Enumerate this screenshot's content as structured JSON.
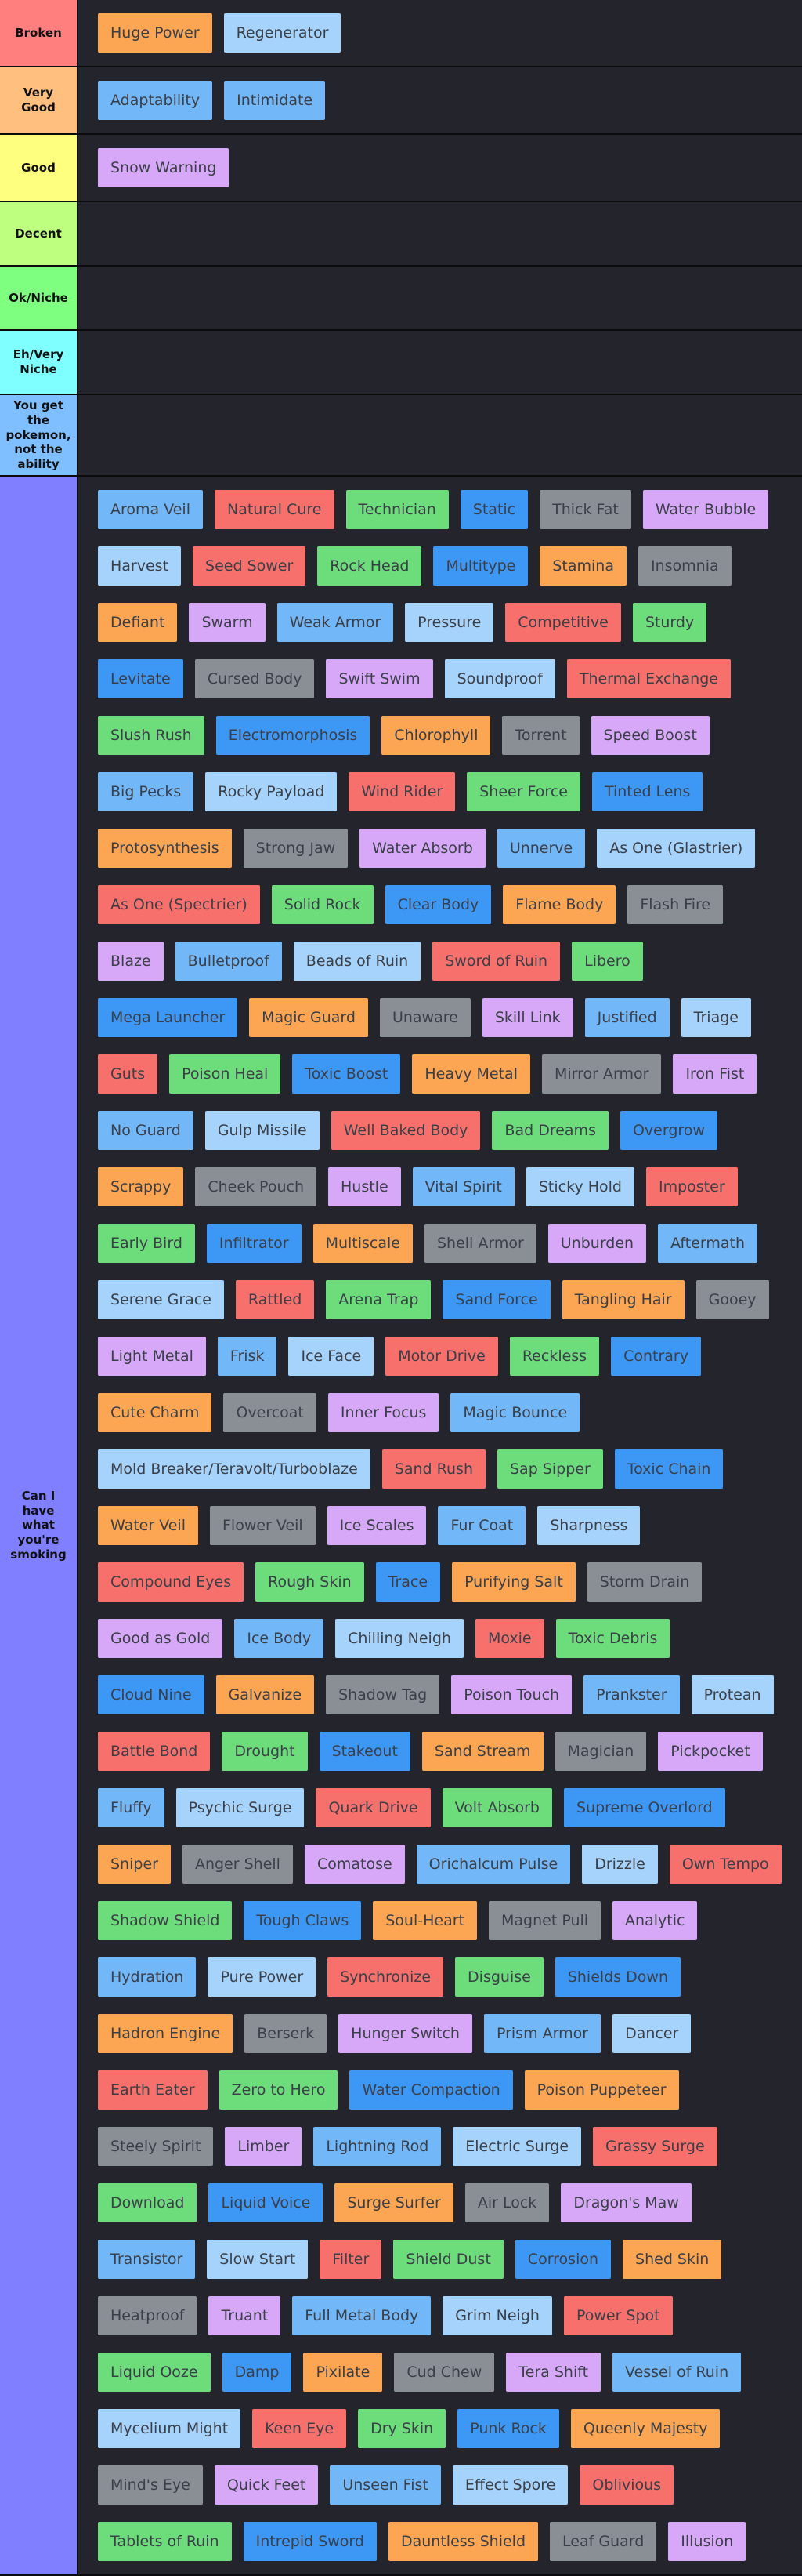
{
  "tiers": [
    {
      "label": "Broken",
      "color": "#ff7f7f",
      "items": [
        {
          "name": "Huge Power",
          "color": "#fca552"
        },
        {
          "name": "Regenerator",
          "color": "#a6d3fb"
        }
      ]
    },
    {
      "label": "Very Good",
      "color": "#ffbf7f",
      "items": [
        {
          "name": "Adaptability",
          "color": "#72b7f7"
        },
        {
          "name": "Intimidate",
          "color": "#72b7f7"
        }
      ]
    },
    {
      "label": "Good",
      "color": "#ffff7f",
      "items": [
        {
          "name": "Snow Warning",
          "color": "#d7a8f8"
        }
      ]
    },
    {
      "label": "Decent",
      "color": "#bfff7f",
      "items": []
    },
    {
      "label": "Ok/Niche",
      "color": "#7fff7f",
      "items": []
    },
    {
      "label": "Eh/Very Niche",
      "color": "#7fffff",
      "items": []
    },
    {
      "label": "You get the pokemon, not the ability",
      "color": "#7fbfff",
      "items": []
    },
    {
      "label": "Can I have what you're smoking",
      "color": "#7f7fff",
      "items": [
        {
          "name": "Aroma Veil",
          "color": "#72b7f7"
        },
        {
          "name": "Natural Cure",
          "color": "#f7706b"
        },
        {
          "name": "Technician",
          "color": "#6ddc7b"
        },
        {
          "name": "Static",
          "color": "#3d97f5"
        },
        {
          "name": "Thick Fat",
          "color": "#8a8f96"
        },
        {
          "name": "Water Bubble",
          "color": "#d7a8f8"
        },
        {
          "name": "Harvest",
          "color": "#a6d3fb"
        },
        {
          "name": "Seed Sower",
          "color": "#f7706b"
        },
        {
          "name": "Rock Head",
          "color": "#6ddc7b"
        },
        {
          "name": "Multitype",
          "color": "#3d97f5"
        },
        {
          "name": "Stamina",
          "color": "#fca552"
        },
        {
          "name": "Insomnia",
          "color": "#8a8f96"
        },
        {
          "name": "Defiant",
          "color": "#fca552"
        },
        {
          "name": "Swarm",
          "color": "#d7a8f8"
        },
        {
          "name": "Weak Armor",
          "color": "#72b7f7"
        },
        {
          "name": "Pressure",
          "color": "#a6d3fb"
        },
        {
          "name": "Competitive",
          "color": "#f7706b"
        },
        {
          "name": "Sturdy",
          "color": "#6ddc7b"
        },
        {
          "name": "Levitate",
          "color": "#3d97f5"
        },
        {
          "name": "Cursed Body",
          "color": "#8a8f96"
        },
        {
          "name": "Swift Swim",
          "color": "#d7a8f8"
        },
        {
          "name": "Soundproof",
          "color": "#a6d3fb"
        },
        {
          "name": "Thermal Exchange",
          "color": "#f7706b"
        },
        {
          "name": "Slush Rush",
          "color": "#6ddc7b"
        },
        {
          "name": "Electromorphosis",
          "color": "#3d97f5"
        },
        {
          "name": "Chlorophyll",
          "color": "#fca552"
        },
        {
          "name": "Torrent",
          "color": "#8a8f96"
        },
        {
          "name": "Speed Boost",
          "color": "#d7a8f8"
        },
        {
          "name": "Big Pecks",
          "color": "#72b7f7"
        },
        {
          "name": "Rocky Payload",
          "color": "#a6d3fb"
        },
        {
          "name": "Wind Rider",
          "color": "#f7706b"
        },
        {
          "name": "Sheer Force",
          "color": "#6ddc7b"
        },
        {
          "name": "Tinted Lens",
          "color": "#3d97f5"
        },
        {
          "name": "Protosynthesis",
          "color": "#fca552"
        },
        {
          "name": "Strong Jaw",
          "color": "#8a8f96"
        },
        {
          "name": "Water Absorb",
          "color": "#d7a8f8"
        },
        {
          "name": "Unnerve",
          "color": "#72b7f7"
        },
        {
          "name": "As One (Glastrier)",
          "color": "#a6d3fb"
        },
        {
          "name": "As One (Spectrier)",
          "color": "#f7706b"
        },
        {
          "name": "Solid Rock",
          "color": "#6ddc7b"
        },
        {
          "name": "Clear Body",
          "color": "#3d97f5"
        },
        {
          "name": "Flame Body",
          "color": "#fca552"
        },
        {
          "name": "Flash Fire",
          "color": "#8a8f96"
        },
        {
          "name": "Blaze",
          "color": "#d7a8f8"
        },
        {
          "name": "Bulletproof",
          "color": "#72b7f7"
        },
        {
          "name": "Beads of Ruin",
          "color": "#a6d3fb"
        },
        {
          "name": "Sword of Ruin",
          "color": "#f7706b"
        },
        {
          "name": "Libero",
          "color": "#6ddc7b"
        },
        {
          "name": "Mega Launcher",
          "color": "#3d97f5"
        },
        {
          "name": "Magic Guard",
          "color": "#fca552"
        },
        {
          "name": "Unaware",
          "color": "#8a8f96"
        },
        {
          "name": "Skill Link",
          "color": "#d7a8f8"
        },
        {
          "name": "Justified",
          "color": "#72b7f7"
        },
        {
          "name": "Triage",
          "color": "#a6d3fb"
        },
        {
          "name": "Guts",
          "color": "#f7706b"
        },
        {
          "name": "Poison Heal",
          "color": "#6ddc7b"
        },
        {
          "name": "Toxic Boost",
          "color": "#3d97f5"
        },
        {
          "name": "Heavy Metal",
          "color": "#fca552"
        },
        {
          "name": "Mirror Armor",
          "color": "#8a8f96"
        },
        {
          "name": "Iron Fist",
          "color": "#d7a8f8"
        },
        {
          "name": "No Guard",
          "color": "#72b7f7"
        },
        {
          "name": "Gulp Missile",
          "color": "#a6d3fb"
        },
        {
          "name": "Well Baked Body",
          "color": "#f7706b"
        },
        {
          "name": "Bad Dreams",
          "color": "#6ddc7b"
        },
        {
          "name": "Overgrow",
          "color": "#3d97f5"
        },
        {
          "name": "Scrappy",
          "color": "#fca552"
        },
        {
          "name": "Cheek Pouch",
          "color": "#8a8f96"
        },
        {
          "name": "Hustle",
          "color": "#d7a8f8"
        },
        {
          "name": "Vital Spirit",
          "color": "#72b7f7"
        },
        {
          "name": "Sticky Hold",
          "color": "#a6d3fb"
        },
        {
          "name": "Imposter",
          "color": "#f7706b"
        },
        {
          "name": "Early Bird",
          "color": "#6ddc7b"
        },
        {
          "name": "Infiltrator",
          "color": "#3d97f5"
        },
        {
          "name": "Multiscale",
          "color": "#fca552"
        },
        {
          "name": "Shell Armor",
          "color": "#8a8f96"
        },
        {
          "name": "Unburden",
          "color": "#d7a8f8"
        },
        {
          "name": "Aftermath",
          "color": "#72b7f7"
        },
        {
          "name": "Serene Grace",
          "color": "#a6d3fb"
        },
        {
          "name": "Rattled",
          "color": "#f7706b"
        },
        {
          "name": "Arena Trap",
          "color": "#6ddc7b"
        },
        {
          "name": "Sand Force",
          "color": "#3d97f5"
        },
        {
          "name": "Tangling Hair",
          "color": "#fca552"
        },
        {
          "name": "Gooey",
          "color": "#8a8f96"
        },
        {
          "name": "Light Metal",
          "color": "#d7a8f8"
        },
        {
          "name": "Frisk",
          "color": "#72b7f7"
        },
        {
          "name": "Ice Face",
          "color": "#a6d3fb"
        },
        {
          "name": "Motor Drive",
          "color": "#f7706b"
        },
        {
          "name": "Reckless",
          "color": "#6ddc7b"
        },
        {
          "name": "Contrary",
          "color": "#3d97f5"
        },
        {
          "name": "Cute Charm",
          "color": "#fca552"
        },
        {
          "name": "Overcoat",
          "color": "#8a8f96"
        },
        {
          "name": "Inner Focus",
          "color": "#d7a8f8"
        },
        {
          "name": "Magic Bounce",
          "color": "#72b7f7"
        },
        {
          "name": "Mold Breaker/Teravolt/Turboblaze",
          "color": "#a6d3fb"
        },
        {
          "name": "Sand Rush",
          "color": "#f7706b"
        },
        {
          "name": "Sap Sipper",
          "color": "#6ddc7b"
        },
        {
          "name": "Toxic Chain",
          "color": "#3d97f5"
        },
        {
          "name": "Water Veil",
          "color": "#fca552"
        },
        {
          "name": "Flower Veil",
          "color": "#8a8f96"
        },
        {
          "name": "Ice Scales",
          "color": "#d7a8f8"
        },
        {
          "name": "Fur Coat",
          "color": "#72b7f7"
        },
        {
          "name": "Sharpness",
          "color": "#a6d3fb"
        },
        {
          "name": "Compound Eyes",
          "color": "#f7706b"
        },
        {
          "name": "Rough Skin",
          "color": "#6ddc7b"
        },
        {
          "name": "Trace",
          "color": "#3d97f5"
        },
        {
          "name": "Purifying Salt",
          "color": "#fca552"
        },
        {
          "name": "Storm Drain",
          "color": "#8a8f96"
        },
        {
          "name": "Good as Gold",
          "color": "#d7a8f8"
        },
        {
          "name": "Ice Body",
          "color": "#72b7f7"
        },
        {
          "name": "Chilling Neigh",
          "color": "#a6d3fb"
        },
        {
          "name": "Moxie",
          "color": "#f7706b"
        },
        {
          "name": "Toxic Debris",
          "color": "#6ddc7b"
        },
        {
          "name": "Cloud Nine",
          "color": "#3d97f5"
        },
        {
          "name": "Galvanize",
          "color": "#fca552"
        },
        {
          "name": "Shadow Tag",
          "color": "#8a8f96"
        },
        {
          "name": "Poison Touch",
          "color": "#d7a8f8"
        },
        {
          "name": "Prankster",
          "color": "#72b7f7"
        },
        {
          "name": "Protean",
          "color": "#a6d3fb"
        },
        {
          "name": "Battle Bond",
          "color": "#f7706b"
        },
        {
          "name": "Drought",
          "color": "#6ddc7b"
        },
        {
          "name": "Stakeout",
          "color": "#3d97f5"
        },
        {
          "name": "Sand Stream",
          "color": "#fca552"
        },
        {
          "name": "Magician",
          "color": "#8a8f96"
        },
        {
          "name": "Pickpocket",
          "color": "#d7a8f8"
        },
        {
          "name": "Fluffy",
          "color": "#72b7f7"
        },
        {
          "name": "Psychic Surge",
          "color": "#a6d3fb"
        },
        {
          "name": "Quark Drive",
          "color": "#f7706b"
        },
        {
          "name": "Volt Absorb",
          "color": "#6ddc7b"
        },
        {
          "name": "Supreme Overlord",
          "color": "#3d97f5"
        },
        {
          "name": "Sniper",
          "color": "#fca552"
        },
        {
          "name": "Anger Shell",
          "color": "#8a8f96"
        },
        {
          "name": "Comatose",
          "color": "#d7a8f8"
        },
        {
          "name": "Orichalcum Pulse",
          "color": "#72b7f7"
        },
        {
          "name": "Drizzle",
          "color": "#a6d3fb"
        },
        {
          "name": "Own Tempo",
          "color": "#f7706b"
        },
        {
          "name": "Shadow Shield",
          "color": "#6ddc7b"
        },
        {
          "name": "Tough Claws",
          "color": "#3d97f5"
        },
        {
          "name": "Soul-Heart",
          "color": "#fca552"
        },
        {
          "name": "Magnet Pull",
          "color": "#8a8f96"
        },
        {
          "name": "Analytic",
          "color": "#d7a8f8"
        },
        {
          "name": "Hydration",
          "color": "#72b7f7"
        },
        {
          "name": "Pure Power",
          "color": "#a6d3fb"
        },
        {
          "name": "Synchronize",
          "color": "#f7706b"
        },
        {
          "name": "Disguise",
          "color": "#6ddc7b"
        },
        {
          "name": "Shields Down",
          "color": "#3d97f5"
        },
        {
          "name": "Hadron Engine",
          "color": "#fca552"
        },
        {
          "name": "Berserk",
          "color": "#8a8f96"
        },
        {
          "name": "Hunger Switch",
          "color": "#d7a8f8"
        },
        {
          "name": "Prism Armor",
          "color": "#72b7f7"
        },
        {
          "name": "Dancer",
          "color": "#a6d3fb"
        },
        {
          "name": "Earth Eater",
          "color": "#f7706b"
        },
        {
          "name": "Zero to Hero",
          "color": "#6ddc7b"
        },
        {
          "name": "Water Compaction",
          "color": "#3d97f5"
        },
        {
          "name": "Poison Puppeteer",
          "color": "#fca552"
        },
        {
          "name": "Steely Spirit",
          "color": "#8a8f96"
        },
        {
          "name": "Limber",
          "color": "#d7a8f8"
        },
        {
          "name": "Lightning Rod",
          "color": "#72b7f7"
        },
        {
          "name": "Electric Surge",
          "color": "#a6d3fb"
        },
        {
          "name": "Grassy Surge",
          "color": "#f7706b"
        },
        {
          "name": "Download",
          "color": "#6ddc7b"
        },
        {
          "name": "Liquid Voice",
          "color": "#3d97f5"
        },
        {
          "name": "Surge Surfer",
          "color": "#fca552"
        },
        {
          "name": "Air Lock",
          "color": "#8a8f96"
        },
        {
          "name": "Dragon's Maw",
          "color": "#d7a8f8"
        },
        {
          "name": "Transistor",
          "color": "#72b7f7"
        },
        {
          "name": "Slow Start",
          "color": "#a6d3fb"
        },
        {
          "name": "Filter",
          "color": "#f7706b"
        },
        {
          "name": "Shield Dust",
          "color": "#6ddc7b"
        },
        {
          "name": "Corrosion",
          "color": "#3d97f5"
        },
        {
          "name": "Shed Skin",
          "color": "#fca552"
        },
        {
          "name": "Heatproof",
          "color": "#8a8f96"
        },
        {
          "name": "Truant",
          "color": "#d7a8f8"
        },
        {
          "name": "Full Metal Body",
          "color": "#72b7f7"
        },
        {
          "name": "Grim Neigh",
          "color": "#a6d3fb"
        },
        {
          "name": "Power Spot",
          "color": "#f7706b"
        },
        {
          "name": "Liquid Ooze",
          "color": "#6ddc7b"
        },
        {
          "name": "Damp",
          "color": "#3d97f5"
        },
        {
          "name": "Pixilate",
          "color": "#fca552"
        },
        {
          "name": "Cud Chew",
          "color": "#8a8f96"
        },
        {
          "name": "Tera Shift",
          "color": "#d7a8f8"
        },
        {
          "name": "Vessel of Ruin",
          "color": "#72b7f7"
        },
        {
          "name": "Mycelium Might",
          "color": "#a6d3fb"
        },
        {
          "name": "Keen Eye",
          "color": "#f7706b"
        },
        {
          "name": "Dry Skin",
          "color": "#6ddc7b"
        },
        {
          "name": "Punk Rock",
          "color": "#3d97f5"
        },
        {
          "name": "Queenly Majesty",
          "color": "#fca552"
        },
        {
          "name": "Mind's Eye",
          "color": "#8a8f96"
        },
        {
          "name": "Quick Feet",
          "color": "#d7a8f8"
        },
        {
          "name": "Unseen Fist",
          "color": "#72b7f7"
        },
        {
          "name": "Effect Spore",
          "color": "#a6d3fb"
        },
        {
          "name": "Oblivious",
          "color": "#f7706b"
        },
        {
          "name": "Tablets of Ruin",
          "color": "#6ddc7b"
        },
        {
          "name": "Intrepid Sword",
          "color": "#3d97f5"
        },
        {
          "name": "Dauntless Shield",
          "color": "#fca552"
        },
        {
          "name": "Leaf Guard",
          "color": "#8a8f96"
        },
        {
          "name": "Illusion",
          "color": "#d7a8f8"
        }
      ]
    }
  ]
}
